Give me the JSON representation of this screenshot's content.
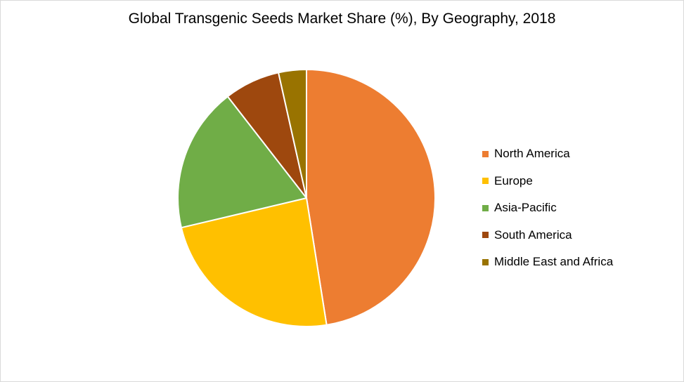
{
  "chart_data": {
    "type": "pie",
    "title": "Global Transgenic Seeds Market Share (%), By Geography, 2018",
    "categories": [
      "North America",
      "Europe",
      "Asia-Pacific",
      "South America",
      "Middle East and Africa"
    ],
    "values": [
      47.5,
      23.8,
      18.2,
      7.0,
      3.5
    ],
    "colors": [
      "#ED7D31",
      "#FFC000",
      "#70AD47",
      "#9E480E",
      "#997300"
    ],
    "legend_position": "right"
  }
}
